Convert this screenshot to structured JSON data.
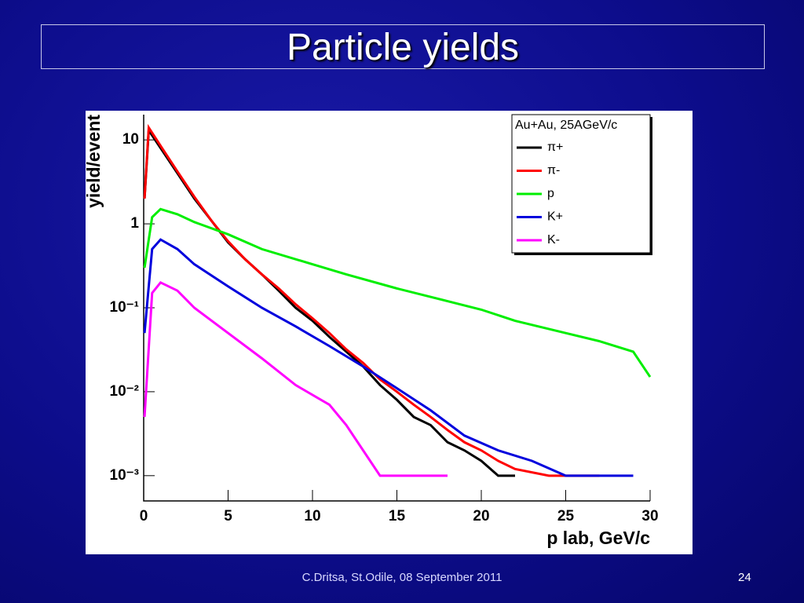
{
  "title": "Particle yields",
  "footer": "C.Dritsa, St.Odile,  08 September 2011",
  "page_number": "24",
  "chart_data": {
    "type": "line",
    "log_y": true,
    "xlabel": "p lab, GeV/c",
    "ylabel": "yield/event",
    "legend_title": "Au+Au, 25AGeV/c",
    "legend_position": "upper right",
    "xlim": [
      0,
      30
    ],
    "xticks": [
      0,
      5,
      10,
      15,
      20,
      25,
      30
    ],
    "ylim": [
      0.0005,
      20
    ],
    "yticks": [
      {
        "value": 0.001,
        "label": "10⁻³"
      },
      {
        "value": 0.01,
        "label": "10⁻²"
      },
      {
        "value": 0.1,
        "label": "10⁻¹"
      },
      1,
      10
    ],
    "series": [
      {
        "name": "π+",
        "color": "#000000",
        "x": [
          0.05,
          0.3,
          1,
          2,
          3,
          4,
          5,
          6,
          7,
          8,
          9,
          10,
          11,
          12,
          13,
          14,
          15,
          16,
          17,
          18,
          19,
          20,
          21,
          22
        ],
        "values": [
          2,
          13,
          8,
          4,
          2,
          1.1,
          0.6,
          0.38,
          0.25,
          0.16,
          0.1,
          0.07,
          0.045,
          0.03,
          0.02,
          0.012,
          0.008,
          0.005,
          0.004,
          0.0025,
          0.002,
          0.0015,
          0.001,
          0.001
        ]
      },
      {
        "name": "π-",
        "color": "#ff0000",
        "x": [
          0.05,
          0.3,
          1,
          2,
          3,
          4,
          5,
          6,
          7,
          8,
          9,
          10,
          11,
          12,
          13,
          14,
          15,
          16,
          17,
          18,
          19,
          20,
          21,
          22,
          24,
          26,
          27
        ],
        "values": [
          2,
          14,
          8.5,
          4.2,
          2.1,
          1.1,
          0.62,
          0.38,
          0.25,
          0.17,
          0.11,
          0.075,
          0.05,
          0.032,
          0.022,
          0.014,
          0.01,
          0.007,
          0.005,
          0.0035,
          0.0025,
          0.002,
          0.0015,
          0.0012,
          0.001,
          0.001,
          0.001
        ]
      },
      {
        "name": "p",
        "color": "#00ee00",
        "x": [
          0.05,
          0.5,
          1,
          2,
          3,
          5,
          7,
          10,
          12,
          15,
          18,
          20,
          22,
          25,
          27,
          29,
          30
        ],
        "values": [
          0.3,
          1.2,
          1.5,
          1.3,
          1.05,
          0.75,
          0.5,
          0.33,
          0.25,
          0.17,
          0.12,
          0.095,
          0.07,
          0.05,
          0.04,
          0.03,
          0.015
        ]
      },
      {
        "name": "K+",
        "color": "#0000dd",
        "x": [
          0.05,
          0.5,
          1,
          2,
          3,
          5,
          7,
          9,
          11,
          13,
          15,
          17,
          19,
          21,
          23,
          25,
          27,
          29
        ],
        "values": [
          0.05,
          0.5,
          0.65,
          0.5,
          0.33,
          0.18,
          0.1,
          0.06,
          0.035,
          0.02,
          0.011,
          0.006,
          0.003,
          0.002,
          0.0015,
          0.001,
          0.001,
          0.001
        ]
      },
      {
        "name": "K-",
        "color": "#ff00ff",
        "x": [
          0.05,
          0.5,
          1,
          2,
          3,
          5,
          7,
          9,
          11,
          12,
          13,
          14,
          16,
          18
        ],
        "values": [
          0.005,
          0.15,
          0.2,
          0.16,
          0.1,
          0.05,
          0.025,
          0.012,
          0.007,
          0.004,
          0.002,
          0.001,
          0.001,
          0.001
        ]
      }
    ]
  }
}
